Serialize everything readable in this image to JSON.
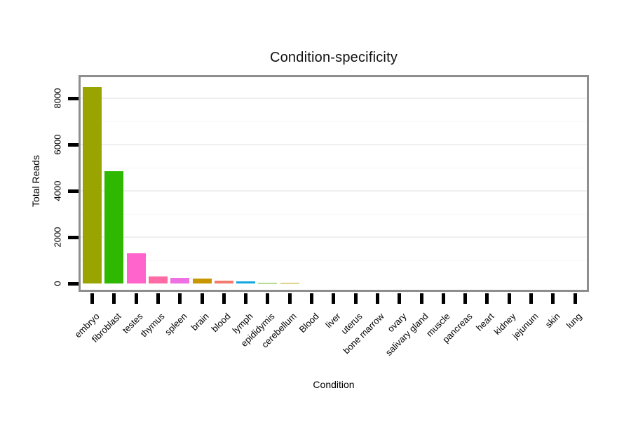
{
  "chart_data": {
    "type": "bar",
    "title": "Condition-specificity",
    "xlabel": "Condition",
    "ylabel": "Total Reads",
    "categories": [
      "embryo",
      "fibroblast",
      "testes",
      "thymus",
      "spleen",
      "brain",
      "blood",
      "lymph",
      "epididymis",
      "cerebellum",
      "Blood",
      "liver",
      "uterus",
      "bone marrow",
      "ovary",
      "salivary gland",
      "muscle",
      "pancreas",
      "heart",
      "kidney",
      "jejunum",
      "skin",
      "lung"
    ],
    "values": [
      8500,
      4850,
      1300,
      310,
      230,
      200,
      110,
      100,
      45,
      40,
      0,
      0,
      0,
      0,
      0,
      0,
      0,
      0,
      0,
      0,
      0,
      0,
      0
    ],
    "bar_colors": [
      "#99a400",
      "#2eb800",
      "#ff63cc",
      "#ff6ba4",
      "#ee70e2",
      "#c89600",
      "#f4796f",
      "#12a7de",
      "#65b01c",
      "#b6a410",
      null,
      null,
      null,
      null,
      null,
      null,
      null,
      null,
      null,
      null,
      null,
      null,
      null
    ],
    "yticks": [
      0,
      2000,
      4000,
      6000,
      8000
    ],
    "ytick_labels": [
      "0",
      "2000",
      "4000",
      "6000",
      "8000"
    ],
    "y_minor_gridlines": [
      1000,
      3000,
      5000,
      7000
    ],
    "ylim": [
      0,
      9000
    ],
    "legend": "none",
    "grid": "horizontal, very faint",
    "panel_border_color": "#8e8e8e",
    "tick_color": "#000000",
    "background_color": "#ffffff"
  }
}
